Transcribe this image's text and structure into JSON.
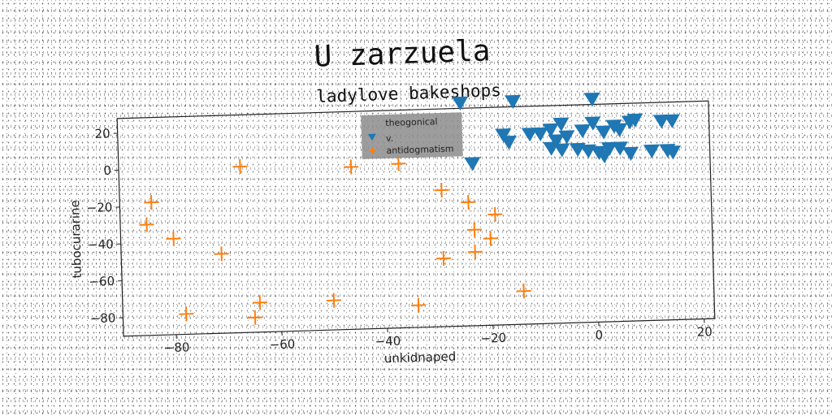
{
  "chart_data": {
    "type": "scatter",
    "title": "U zarzuela",
    "subtitle": "ladylove bakeshops",
    "xlabel": "unkidnaped",
    "ylabel": "tubocurarine",
    "xlim": [
      -90,
      22
    ],
    "ylim": [
      -90,
      28
    ],
    "xticks": [
      -80,
      -60,
      -40,
      -20,
      0,
      20
    ],
    "yticks": [
      20,
      0,
      -20,
      -40,
      -60,
      -80
    ],
    "grid": false,
    "legend": {
      "title": "theogonical",
      "placement": "top-center"
    },
    "colors": {
      "v.": "#1f77b4",
      "antidogmatism": "#ff7f0e"
    },
    "series": [
      {
        "name": "v.",
        "marker": "triangle-down",
        "points": [
          [
            -25,
            31
          ],
          [
            -15,
            31
          ],
          [
            0,
            31
          ],
          [
            -17,
            13
          ],
          [
            -16,
            9
          ],
          [
            -12,
            13
          ],
          [
            -10,
            13
          ],
          [
            -8,
            15
          ],
          [
            -7,
            9
          ],
          [
            -6,
            18
          ],
          [
            -5,
            11
          ],
          [
            -2,
            14
          ],
          [
            0,
            18
          ],
          [
            2,
            13
          ],
          [
            4,
            16
          ],
          [
            5,
            14
          ],
          [
            7,
            18
          ],
          [
            8,
            19
          ],
          [
            13,
            18
          ],
          [
            15,
            18
          ],
          [
            -8,
            5
          ],
          [
            -6,
            4
          ],
          [
            -3,
            4
          ],
          [
            -1,
            3
          ],
          [
            1,
            2
          ],
          [
            3,
            4
          ],
          [
            5,
            4
          ],
          [
            7,
            1
          ],
          [
            11,
            2
          ],
          [
            14,
            2
          ],
          [
            15,
            1
          ],
          [
            -23,
            -2
          ],
          [
            2,
            0
          ]
        ]
      },
      {
        "name": "antidogmatism",
        "marker": "plus",
        "points": [
          [
            -67,
            0
          ],
          [
            -46,
            -2
          ],
          [
            -37,
            -1
          ],
          [
            -29,
            -16
          ],
          [
            -84,
            -18
          ],
          [
            -85,
            -30
          ],
          [
            -24,
            -23
          ],
          [
            -23,
            -38
          ],
          [
            -19,
            -30
          ],
          [
            -80,
            -38
          ],
          [
            -20,
            -43
          ],
          [
            -71,
            -47
          ],
          [
            -23,
            -50
          ],
          [
            -29,
            -53
          ],
          [
            -14,
            -72
          ],
          [
            -50,
            -74
          ],
          [
            -64,
            -74
          ],
          [
            -78,
            -79
          ],
          [
            -65,
            -82
          ],
          [
            -34,
            -78
          ]
        ]
      }
    ]
  }
}
